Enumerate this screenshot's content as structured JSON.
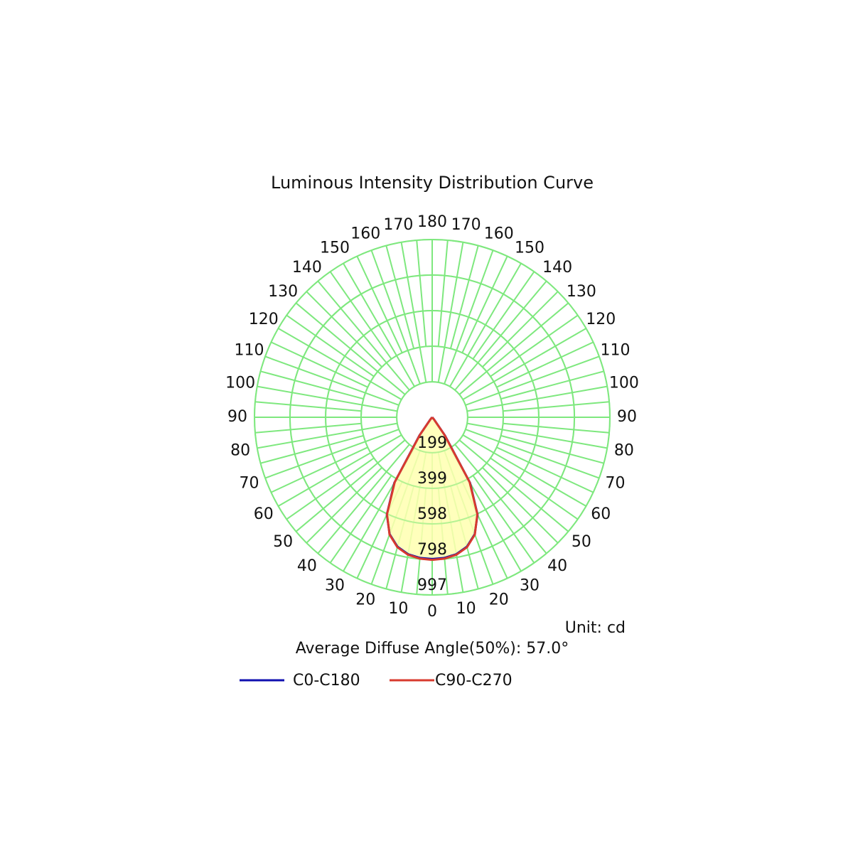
{
  "chart_data": {
    "type": "polar",
    "title": "Luminous Intensity Distribution Curve",
    "unit_label": "Unit: cd",
    "annotation": "Average Diffuse Angle(50%): 57.0°",
    "angles": [
      0,
      5,
      10,
      15,
      20,
      25,
      30,
      35,
      40,
      45,
      50,
      55,
      60,
      65,
      70,
      75,
      80,
      85,
      90
    ],
    "series": [
      {
        "name": "C0-C180",
        "color": "#1010b0",
        "values": [
          795,
          792,
          780,
          752,
          698,
          602,
          425,
          125,
          16,
          0,
          0,
          0,
          0,
          0,
          0,
          0,
          0,
          0,
          0
        ]
      },
      {
        "name": "C90-C270",
        "color": "#d83a2e",
        "values": [
          800,
          796,
          783,
          755,
          700,
          600,
          420,
          120,
          15,
          0,
          0,
          0,
          0,
          0,
          0,
          0,
          0,
          0,
          0
        ]
      }
    ],
    "rlim": [
      0,
      997
    ],
    "rticks": [
      199,
      399,
      598,
      798,
      997
    ],
    "angle_ticks": [
      0,
      10,
      20,
      30,
      40,
      50,
      60,
      70,
      80,
      90,
      100,
      110,
      120,
      130,
      140,
      150,
      160,
      170,
      180
    ],
    "fill_color": "#ffffb0"
  }
}
